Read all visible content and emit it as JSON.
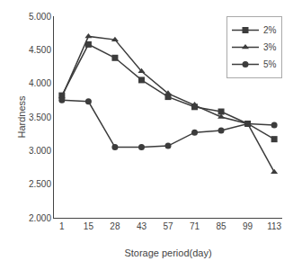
{
  "chart_data": {
    "type": "line",
    "xlabel": "Storage period(day)",
    "ylabel": "Hardness",
    "categories": [
      "1",
      "15",
      "28",
      "43",
      "57",
      "71",
      "85",
      "99",
      "113"
    ],
    "series": [
      {
        "name": "2%",
        "color": "#3c3c3c",
        "marker": "square",
        "values": [
          3.82,
          4.58,
          4.38,
          4.05,
          3.8,
          3.65,
          3.58,
          3.4,
          3.17
        ]
      },
      {
        "name": "3%",
        "color": "#3c3c3c",
        "marker": "triangle",
        "values": [
          3.8,
          4.7,
          4.65,
          4.18,
          3.85,
          3.68,
          3.5,
          3.4,
          2.68
        ]
      },
      {
        "name": "5%",
        "color": "#3c3c3c",
        "marker": "circle",
        "values": [
          3.75,
          3.73,
          3.05,
          3.05,
          3.07,
          3.27,
          3.3,
          3.4,
          3.38
        ]
      }
    ],
    "ylim": [
      2.0,
      5.0
    ],
    "yticks": [
      {
        "value": 2.0,
        "label": "2.000"
      },
      {
        "value": 2.5,
        "label": "2.500"
      },
      {
        "value": 3.0,
        "label": "3.000"
      },
      {
        "value": 3.5,
        "label": "3.500"
      },
      {
        "value": 4.0,
        "label": "4.000"
      },
      {
        "value": 4.5,
        "label": "4.500"
      },
      {
        "value": 5.0,
        "label": "5.000"
      }
    ],
    "grid": false,
    "legend": "upper right"
  }
}
